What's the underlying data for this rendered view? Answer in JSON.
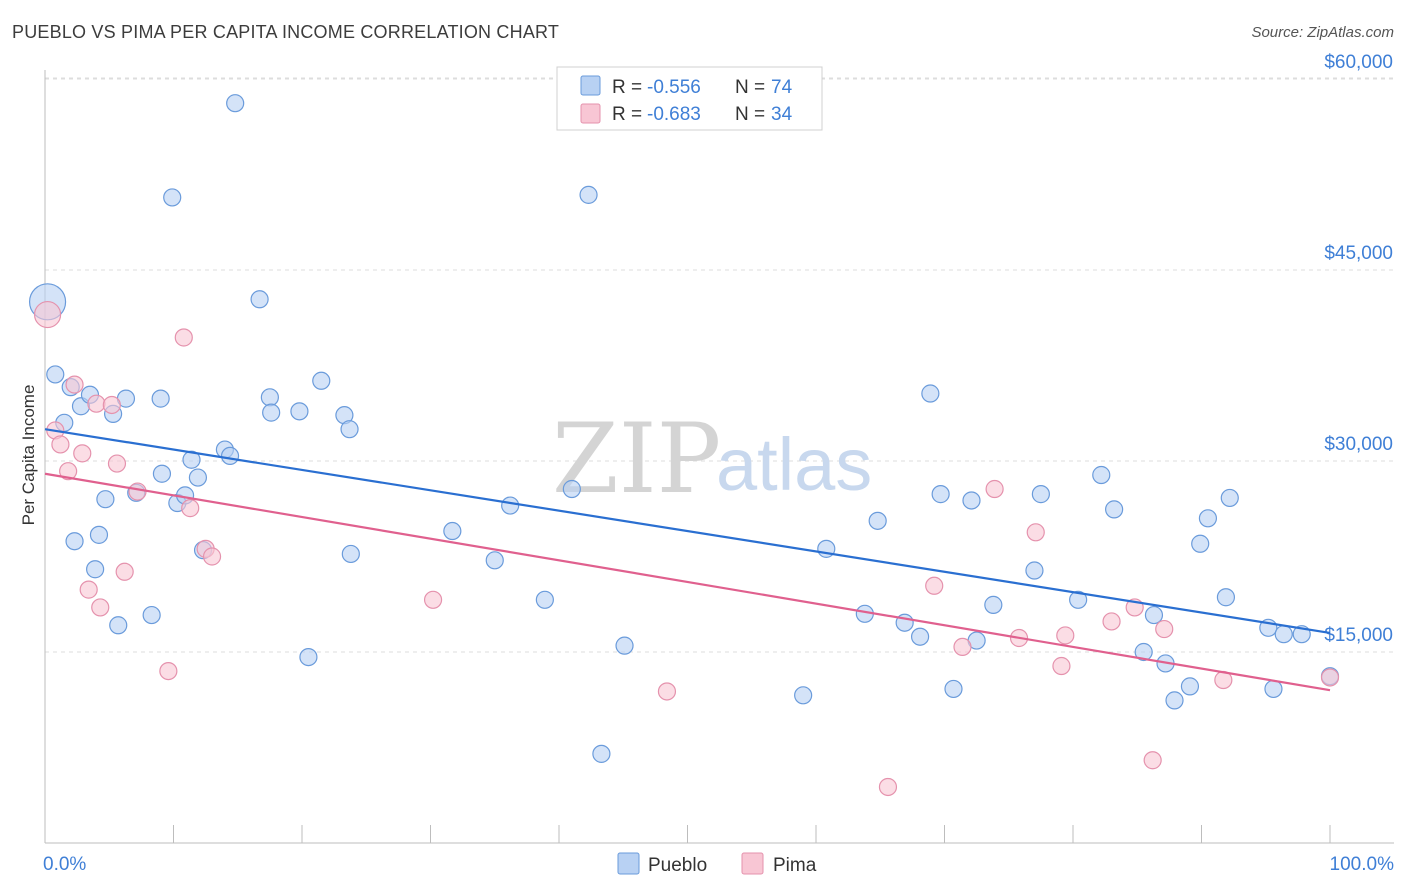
{
  "header": {
    "title": "PUEBLO VS PIMA PER CAPITA INCOME CORRELATION CHART",
    "source": "Source: ZipAtlas.com"
  },
  "watermark": {
    "zip": "ZIP",
    "atlas": "atlas"
  },
  "colors": {
    "pueblo_fill": "#b8d1f3",
    "pueblo_stroke": "#6a9bdb",
    "pueblo_line": "#2a6fd1",
    "pima_fill": "#f8c6d4",
    "pima_stroke": "#e592ad",
    "pima_line": "#e0608e",
    "axis_text": "#3f7fd6",
    "grid": "#dddddd"
  },
  "legend": {
    "items": [
      {
        "r_label": "R = ",
        "r_value": "-0.556",
        "n_label": "N = ",
        "n_value": "74"
      },
      {
        "r_label": "R = ",
        "r_value": "-0.683",
        "n_label": "N = ",
        "n_value": "34"
      }
    ]
  },
  "chart_data": {
    "type": "scatter",
    "title": "PUEBLO VS PIMA PER CAPITA INCOME CORRELATION CHART",
    "xlabel": "",
    "ylabel": "Per Capita Income",
    "xlim": [
      0,
      100
    ],
    "ylim": [
      1000,
      63000
    ],
    "x_tick_labels": {
      "min": "0.0%",
      "max": "100.0%"
    },
    "y_ticks": [
      {
        "value": 15000,
        "label": "$15,000"
      },
      {
        "value": 30000,
        "label": "$30,000"
      },
      {
        "value": 45000,
        "label": "$45,000"
      },
      {
        "value": 60000,
        "label": "$60,000"
      }
    ],
    "grid": true,
    "legend_position": "top-center",
    "series": [
      {
        "name": "Pueblo",
        "trend": {
          "x": [
            0,
            100
          ],
          "y": [
            32500,
            16500
          ]
        },
        "points": [
          {
            "x": 0.2,
            "y": 42500,
            "s": 18
          },
          {
            "x": 0.8,
            "y": 36800
          },
          {
            "x": 1.5,
            "y": 33000
          },
          {
            "x": 2.0,
            "y": 35800
          },
          {
            "x": 2.3,
            "y": 23700
          },
          {
            "x": 2.8,
            "y": 34300
          },
          {
            "x": 3.5,
            "y": 35200
          },
          {
            "x": 3.9,
            "y": 21500
          },
          {
            "x": 4.2,
            "y": 24200
          },
          {
            "x": 4.7,
            "y": 27000
          },
          {
            "x": 5.3,
            "y": 33700
          },
          {
            "x": 5.7,
            "y": 17100
          },
          {
            "x": 6.3,
            "y": 34900
          },
          {
            "x": 7.1,
            "y": 27500
          },
          {
            "x": 8.3,
            "y": 17900
          },
          {
            "x": 9.0,
            "y": 34900
          },
          {
            "x": 9.1,
            "y": 29000
          },
          {
            "x": 9.9,
            "y": 50700
          },
          {
            "x": 10.3,
            "y": 26700
          },
          {
            "x": 10.9,
            "y": 27300
          },
          {
            "x": 11.4,
            "y": 30100
          },
          {
            "x": 11.9,
            "y": 28700
          },
          {
            "x": 12.3,
            "y": 23000
          },
          {
            "x": 14.0,
            "y": 30900
          },
          {
            "x": 14.4,
            "y": 30400
          },
          {
            "x": 14.8,
            "y": 58100
          },
          {
            "x": 16.7,
            "y": 42700
          },
          {
            "x": 17.5,
            "y": 35000
          },
          {
            "x": 17.6,
            "y": 33800
          },
          {
            "x": 19.8,
            "y": 33900
          },
          {
            "x": 20.5,
            "y": 14600
          },
          {
            "x": 21.5,
            "y": 36300
          },
          {
            "x": 23.3,
            "y": 33600
          },
          {
            "x": 23.8,
            "y": 22700
          },
          {
            "x": 23.7,
            "y": 32500
          },
          {
            "x": 31.7,
            "y": 24500
          },
          {
            "x": 35.0,
            "y": 22200
          },
          {
            "x": 36.2,
            "y": 26500
          },
          {
            "x": 38.9,
            "y": 19100
          },
          {
            "x": 41.0,
            "y": 27800
          },
          {
            "x": 42.3,
            "y": 50900
          },
          {
            "x": 43.3,
            "y": 7000
          },
          {
            "x": 45.1,
            "y": 15500
          },
          {
            "x": 59.0,
            "y": 11600
          },
          {
            "x": 60.8,
            "y": 23100
          },
          {
            "x": 63.8,
            "y": 18000
          },
          {
            "x": 64.8,
            "y": 25300
          },
          {
            "x": 66.9,
            "y": 17300
          },
          {
            "x": 68.1,
            "y": 16200
          },
          {
            "x": 68.9,
            "y": 35300
          },
          {
            "x": 69.7,
            "y": 27400
          },
          {
            "x": 70.7,
            "y": 12100
          },
          {
            "x": 72.1,
            "y": 26900
          },
          {
            "x": 72.5,
            "y": 15900
          },
          {
            "x": 73.8,
            "y": 18700
          },
          {
            "x": 77.0,
            "y": 21400
          },
          {
            "x": 77.5,
            "y": 27400
          },
          {
            "x": 80.4,
            "y": 19100
          },
          {
            "x": 82.2,
            "y": 28900
          },
          {
            "x": 83.2,
            "y": 26200
          },
          {
            "x": 85.5,
            "y": 15000
          },
          {
            "x": 86.3,
            "y": 17900
          },
          {
            "x": 87.2,
            "y": 14100
          },
          {
            "x": 87.9,
            "y": 11200
          },
          {
            "x": 89.1,
            "y": 12300
          },
          {
            "x": 89.9,
            "y": 23500
          },
          {
            "x": 90.5,
            "y": 25500
          },
          {
            "x": 91.9,
            "y": 19300
          },
          {
            "x": 92.2,
            "y": 27100
          },
          {
            "x": 95.2,
            "y": 16900
          },
          {
            "x": 95.6,
            "y": 12100
          },
          {
            "x": 96.4,
            "y": 16400
          },
          {
            "x": 97.8,
            "y": 16400
          },
          {
            "x": 100.0,
            "y": 13100
          }
        ]
      },
      {
        "name": "Pima",
        "trend": {
          "x": [
            0,
            100
          ],
          "y": [
            29000,
            12000
          ]
        },
        "points": [
          {
            "x": 0.2,
            "y": 41500,
            "s": 13
          },
          {
            "x": 0.8,
            "y": 32400
          },
          {
            "x": 1.2,
            "y": 31300
          },
          {
            "x": 1.8,
            "y": 29200
          },
          {
            "x": 2.3,
            "y": 36000
          },
          {
            "x": 2.9,
            "y": 30600
          },
          {
            "x": 3.4,
            "y": 19900
          },
          {
            "x": 4.0,
            "y": 34500
          },
          {
            "x": 4.3,
            "y": 18500
          },
          {
            "x": 5.2,
            "y": 34400
          },
          {
            "x": 5.6,
            "y": 29800
          },
          {
            "x": 6.2,
            "y": 21300
          },
          {
            "x": 7.2,
            "y": 27600
          },
          {
            "x": 9.6,
            "y": 13500
          },
          {
            "x": 10.8,
            "y": 39700
          },
          {
            "x": 11.3,
            "y": 26300
          },
          {
            "x": 12.5,
            "y": 23100
          },
          {
            "x": 13.0,
            "y": 22500
          },
          {
            "x": 30.2,
            "y": 19100
          },
          {
            "x": 48.4,
            "y": 11900
          },
          {
            "x": 65.6,
            "y": 4400
          },
          {
            "x": 69.2,
            "y": 20200
          },
          {
            "x": 71.4,
            "y": 15400
          },
          {
            "x": 73.9,
            "y": 27800
          },
          {
            "x": 75.8,
            "y": 16100
          },
          {
            "x": 77.1,
            "y": 24400
          },
          {
            "x": 79.1,
            "y": 13900
          },
          {
            "x": 79.4,
            "y": 16300
          },
          {
            "x": 83.0,
            "y": 17400
          },
          {
            "x": 84.8,
            "y": 18500
          },
          {
            "x": 86.2,
            "y": 6500
          },
          {
            "x": 87.1,
            "y": 16800
          },
          {
            "x": 91.7,
            "y": 12800
          },
          {
            "x": 100.0,
            "y": 13000
          }
        ]
      }
    ]
  }
}
